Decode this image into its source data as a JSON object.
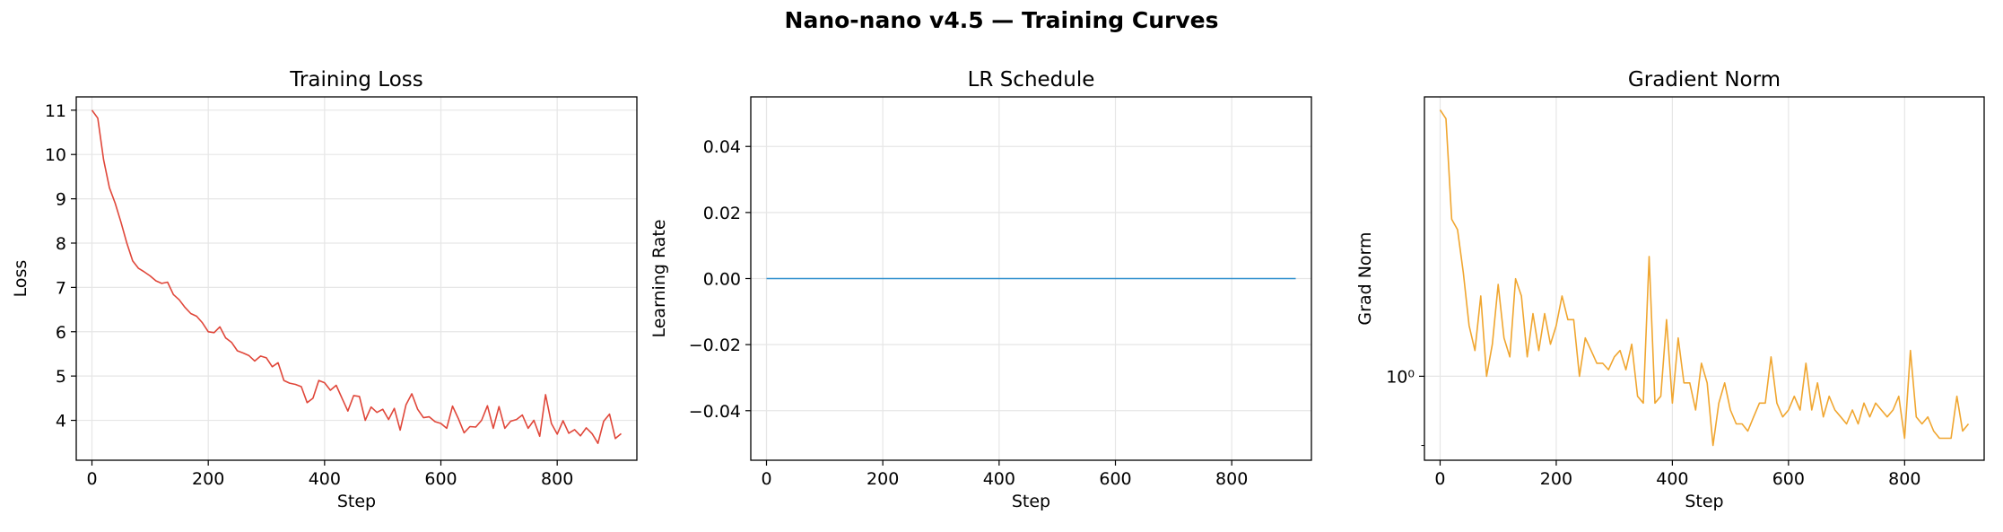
{
  "figure_title": "Nano-nano v4.5 — Training Curves",
  "chart_data": [
    {
      "type": "line",
      "title": "Training Loss",
      "xlabel": "Step",
      "ylabel": "Loss",
      "color": "#e0473a",
      "grid": true,
      "xlim": [
        -27,
        937
      ],
      "ylim": [
        3.1,
        11.3
      ],
      "xticks": [
        0,
        200,
        400,
        600,
        800
      ],
      "yticks": [
        4,
        5,
        6,
        7,
        8,
        9,
        10,
        11
      ],
      "ytick_labels": [
        "4",
        "5",
        "6",
        "7",
        "8",
        "9",
        "10",
        "11"
      ],
      "x": [
        0,
        10,
        20,
        30,
        40,
        50,
        60,
        70,
        80,
        90,
        100,
        110,
        120,
        130,
        140,
        150,
        160,
        170,
        180,
        190,
        200,
        210,
        220,
        230,
        240,
        250,
        260,
        270,
        280,
        290,
        300,
        310,
        320,
        330,
        340,
        350,
        360,
        370,
        380,
        390,
        400,
        410,
        420,
        430,
        440,
        450,
        460,
        470,
        480,
        490,
        500,
        510,
        520,
        530,
        540,
        550,
        560,
        570,
        580,
        590,
        600,
        610,
        620,
        630,
        640,
        650,
        660,
        670,
        680,
        690,
        700,
        710,
        720,
        730,
        740,
        750,
        760,
        770,
        780,
        790,
        800,
        810,
        820,
        830,
        840,
        850,
        860,
        870,
        880,
        890,
        900,
        910
      ],
      "y": [
        11.0,
        10.82,
        9.88,
        9.25,
        8.9,
        8.47,
        8.0,
        7.6,
        7.43,
        7.35,
        7.26,
        7.15,
        7.09,
        7.12,
        6.84,
        6.72,
        6.55,
        6.41,
        6.35,
        6.2,
        6.0,
        5.98,
        6.11,
        5.86,
        5.76,
        5.57,
        5.52,
        5.46,
        5.34,
        5.45,
        5.41,
        5.21,
        5.3,
        4.9,
        4.84,
        4.81,
        4.76,
        4.4,
        4.5,
        4.9,
        4.85,
        4.68,
        4.79,
        4.5,
        4.21,
        4.56,
        4.54,
        4.0,
        4.3,
        4.18,
        4.25,
        4.02,
        4.27,
        3.78,
        4.35,
        4.6,
        4.25,
        4.06,
        4.08,
        3.97,
        3.93,
        3.82,
        4.32,
        4.04,
        3.72,
        3.86,
        3.85,
        4.0,
        4.33,
        3.82,
        4.31,
        3.82,
        3.98,
        4.02,
        4.12,
        3.82,
        4.0,
        3.64,
        4.58,
        3.93,
        3.69,
        3.99,
        3.71,
        3.79,
        3.65,
        3.83,
        3.7,
        3.48,
        3.98,
        4.14,
        3.59,
        3.7
      ]
    },
    {
      "type": "line",
      "title": "LR Schedule",
      "xlabel": "Step",
      "ylabel": "Learning Rate",
      "color": "#2f8fce",
      "grid": true,
      "xlim": [
        -27,
        937
      ],
      "ylim": [
        -0.055,
        0.055
      ],
      "xticks": [
        0,
        200,
        400,
        600,
        800
      ],
      "yticks": [
        -0.04,
        -0.02,
        0.0,
        0.02,
        0.04
      ],
      "ytick_labels": [
        "−0.04",
        "−0.02",
        "0.00",
        "0.02",
        "0.04"
      ],
      "x": [
        0,
        910
      ],
      "y": [
        0.0,
        0.0
      ]
    },
    {
      "type": "line",
      "title": "Gradient Norm",
      "xlabel": "Step",
      "ylabel": "Grad Norm",
      "color": "#f0a630",
      "grid": true,
      "yscale": "log",
      "xlim": [
        -27,
        937
      ],
      "ylim": [
        0.88,
        1.53
      ],
      "xticks": [
        0,
        200,
        400,
        600,
        800
      ],
      "yticks": [
        1.0
      ],
      "ytick_labels": [
        "10⁰"
      ],
      "x": [
        0,
        10,
        20,
        30,
        40,
        50,
        60,
        70,
        80,
        90,
        100,
        110,
        120,
        130,
        140,
        150,
        160,
        170,
        180,
        190,
        200,
        210,
        220,
        230,
        240,
        250,
        260,
        270,
        280,
        290,
        300,
        310,
        320,
        330,
        340,
        350,
        360,
        370,
        380,
        390,
        400,
        410,
        420,
        430,
        440,
        450,
        460,
        470,
        480,
        490,
        500,
        510,
        520,
        530,
        540,
        550,
        560,
        570,
        580,
        590,
        600,
        610,
        620,
        630,
        640,
        650,
        660,
        670,
        680,
        690,
        700,
        710,
        720,
        730,
        740,
        750,
        760,
        770,
        780,
        790,
        800,
        810,
        820,
        830,
        840,
        850,
        860,
        870,
        880,
        890,
        900,
        910
      ],
      "y": [
        1.5,
        1.48,
        1.27,
        1.25,
        1.17,
        1.08,
        1.04,
        1.13,
        1.0,
        1.05,
        1.15,
        1.06,
        1.03,
        1.16,
        1.13,
        1.03,
        1.1,
        1.04,
        1.1,
        1.05,
        1.08,
        1.13,
        1.09,
        1.09,
        1.0,
        1.06,
        1.04,
        1.02,
        1.02,
        1.01,
        1.03,
        1.04,
        1.01,
        1.05,
        0.97,
        0.96,
        1.2,
        0.96,
        0.97,
        1.09,
        0.96,
        1.06,
        0.99,
        0.99,
        0.95,
        1.02,
        0.99,
        0.9,
        0.96,
        0.99,
        0.95,
        0.93,
        0.93,
        0.92,
        0.94,
        0.96,
        0.96,
        1.03,
        0.96,
        0.94,
        0.95,
        0.97,
        0.95,
        1.02,
        0.95,
        0.99,
        0.94,
        0.97,
        0.95,
        0.94,
        0.93,
        0.95,
        0.93,
        0.96,
        0.94,
        0.96,
        0.95,
        0.94,
        0.95,
        0.97,
        0.91,
        1.04,
        0.94,
        0.93,
        0.94,
        0.92,
        0.91,
        0.91,
        0.91,
        0.97,
        0.92,
        0.93
      ]
    }
  ]
}
